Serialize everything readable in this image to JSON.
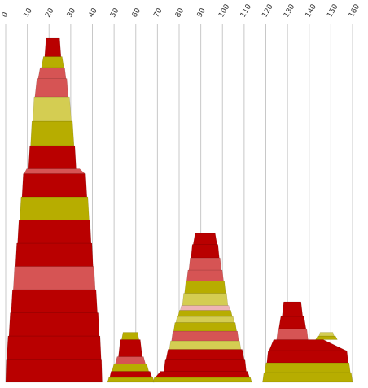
{
  "chart_data": {
    "type": "area",
    "description_axis": "stacked horizontal bands forming stepped peaks along a numeric x axis",
    "x_axis": {
      "ticks": [
        0,
        10,
        20,
        30,
        40,
        50,
        60,
        70,
        80,
        90,
        100,
        110,
        120,
        130,
        140,
        150,
        160
      ],
      "tick_labels": [
        "0",
        "10",
        "20",
        "30",
        "40",
        "50",
        "60",
        "70",
        "80",
        "90",
        "100",
        "110",
        "120",
        "130",
        "140",
        "150",
        "160"
      ],
      "range": [
        0,
        160
      ],
      "position": "top",
      "label_rotation_deg": -60
    },
    "y_axis": {
      "range": [
        0,
        100
      ],
      "visible": false
    },
    "grid": true,
    "palette": {
      "dark_red": "#b90000",
      "light_red": "#d65454",
      "olive": "#b7ad00",
      "light_olive": "#d4cd52",
      "pink": "#eeb4b4"
    },
    "stacks": [
      {
        "name": "",
        "bands": [
          {
            "bottom": 0,
            "top": 9.5,
            "x_start": 0,
            "x_end": 44.5,
            "color": "dark_red"
          },
          {
            "bottom": 9.5,
            "top": 19,
            "x_start": 0.5,
            "x_end": 44,
            "color": "dark_red"
          },
          {
            "bottom": 19,
            "top": 28.5,
            "x_start": 1.5,
            "x_end": 43.2,
            "color": "dark_red"
          },
          {
            "bottom": 28.5,
            "top": 38,
            "x_start": 2.5,
            "x_end": 42.3,
            "color": "dark_red"
          },
          {
            "bottom": 38,
            "top": 47.5,
            "x_start": 3.5,
            "x_end": 41.3,
            "color": "light_red"
          },
          {
            "bottom": 47.5,
            "top": 57,
            "x_start": 4.5,
            "x_end": 40.3,
            "color": "dark_red"
          },
          {
            "bottom": 57,
            "top": 66.5,
            "x_start": 5.5,
            "x_end": 39.4,
            "color": "dark_red"
          },
          {
            "bottom": 66.5,
            "top": 76,
            "x_start": 6.5,
            "x_end": 38.5,
            "color": "olive"
          },
          {
            "bottom": 76,
            "top": 85.5,
            "x_start": 7.5,
            "x_end": 37.5,
            "color": "dark_red"
          },
          {
            "bottom": 85.5,
            "top": 87.5,
            "x_start": 8.5,
            "x_end": 36.5,
            "color": "light_red"
          },
          {
            "bottom": 87.5,
            "top": 97,
            "x_start": 10.5,
            "x_end": 32.5,
            "color": "dark_red"
          },
          {
            "bottom": 97,
            "top": 107,
            "x_start": 11.5,
            "x_end": 31.5,
            "color": "olive"
          },
          {
            "bottom": 107,
            "top": 117,
            "x_start": 12.5,
            "x_end": 30.3,
            "color": "light_olive"
          },
          {
            "bottom": 117,
            "top": 124.5,
            "x_start": 13.5,
            "x_end": 28.8,
            "color": "light_red"
          },
          {
            "bottom": 124.5,
            "top": 129,
            "x_start": 15,
            "x_end": 27.8,
            "color": "light_red"
          },
          {
            "bottom": 129,
            "top": 133.5,
            "x_start": 16.5,
            "x_end": 26.8,
            "color": "olive"
          },
          {
            "bottom": 133.5,
            "top": 141,
            "x_start": 18,
            "x_end": 25.5,
            "color": "dark_red"
          }
        ]
      },
      {
        "name": "",
        "bands": [
          {
            "bottom": 0,
            "top": 2,
            "x_start": 47,
            "x_end": 68.5,
            "color": "olive"
          },
          {
            "bottom": 2,
            "top": 4.5,
            "x_start": 48,
            "x_end": 67.5,
            "color": "dark_red"
          },
          {
            "bottom": 4.5,
            "top": 7.5,
            "x_start": 49,
            "x_end": 66,
            "color": "olive"
          },
          {
            "bottom": 7.5,
            "top": 10.5,
            "x_start": 50.5,
            "x_end": 64.5,
            "color": "light_red"
          },
          {
            "bottom": 10.5,
            "top": 17.5,
            "x_start": 52,
            "x_end": 63,
            "color": "dark_red"
          },
          {
            "bottom": 17.5,
            "top": 20.5,
            "x_start": 53.5,
            "x_end": 61.5,
            "color": "olive"
          }
        ]
      },
      {
        "name": "",
        "bands": [
          {
            "bottom": 0,
            "top": 2,
            "x_start": 68,
            "x_end": 113.5,
            "color": "olive"
          },
          {
            "bottom": 2,
            "top": 4.5,
            "x_start": 69,
            "x_end": 112.5,
            "color": "dark_red"
          },
          {
            "bottom": 4.5,
            "top": 9.5,
            "x_start": 73,
            "x_end": 111,
            "color": "dark_red"
          },
          {
            "bottom": 9.5,
            "top": 13.5,
            "x_start": 74,
            "x_end": 110,
            "color": "dark_red"
          },
          {
            "bottom": 13.5,
            "top": 17,
            "x_start": 75.5,
            "x_end": 108.5,
            "color": "light_olive"
          },
          {
            "bottom": 17,
            "top": 21,
            "x_start": 76.5,
            "x_end": 107.5,
            "color": "light_red"
          },
          {
            "bottom": 21,
            "top": 24.5,
            "x_start": 77.5,
            "x_end": 106.5,
            "color": "olive"
          },
          {
            "bottom": 24.5,
            "top": 27,
            "x_start": 78.5,
            "x_end": 105.5,
            "color": "light_olive"
          },
          {
            "bottom": 27,
            "top": 29.5,
            "x_start": 79.5,
            "x_end": 104.5,
            "color": "olive"
          },
          {
            "bottom": 29.5,
            "top": 31.5,
            "x_start": 80.5,
            "x_end": 103.5,
            "color": "pink"
          },
          {
            "bottom": 31.5,
            "top": 36.5,
            "x_start": 81.5,
            "x_end": 102.5,
            "color": "light_olive"
          },
          {
            "bottom": 36.5,
            "top": 41.5,
            "x_start": 82.5,
            "x_end": 101.5,
            "color": "olive"
          },
          {
            "bottom": 41.5,
            "top": 46,
            "x_start": 83.5,
            "x_end": 100.5,
            "color": "light_red"
          },
          {
            "bottom": 46,
            "top": 51,
            "x_start": 84.5,
            "x_end": 99.5,
            "color": "light_red"
          },
          {
            "bottom": 51,
            "top": 56.5,
            "x_start": 85.5,
            "x_end": 98.5,
            "color": "dark_red"
          },
          {
            "bottom": 56.5,
            "top": 61,
            "x_start": 86.5,
            "x_end": 97.5,
            "color": "dark_red"
          }
        ]
      },
      {
        "name": "",
        "bands": [
          {
            "bottom": 0,
            "top": 4,
            "x_start": 118.5,
            "x_end": 160,
            "color": "olive"
          },
          {
            "bottom": 4,
            "top": 8,
            "x_start": 119.5,
            "x_end": 159,
            "color": "olive"
          },
          {
            "bottom": 8,
            "top": 13,
            "x_start": 120.5,
            "x_end": 158,
            "color": "dark_red"
          },
          {
            "bottom": 13,
            "top": 17.5,
            "x_start": 121.5,
            "x_end": 157,
            "color": "dark_red"
          },
          {
            "bottom": 17.5,
            "top": 22,
            "x_start": 125,
            "x_end": 139.5,
            "color": "light_red"
          },
          {
            "bottom": 22,
            "top": 27,
            "x_start": 126,
            "x_end": 138.5,
            "color": "dark_red"
          },
          {
            "bottom": 27,
            "top": 33,
            "x_start": 127.5,
            "x_end": 137,
            "color": "dark_red"
          }
        ]
      },
      {
        "name": "",
        "bands": [
          {
            "bottom": 17.5,
            "top": 19,
            "x_start": 143,
            "x_end": 153,
            "color": "olive"
          },
          {
            "bottom": 19,
            "top": 20.5,
            "x_start": 144.5,
            "x_end": 151.5,
            "color": "light_olive"
          }
        ]
      }
    ]
  }
}
